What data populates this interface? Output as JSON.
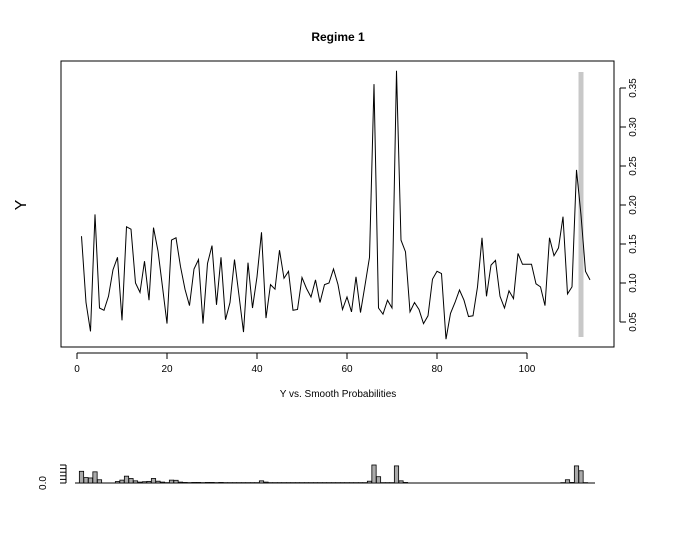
{
  "chart_data": [
    {
      "type": "line",
      "title": "Regime 1",
      "xlabel": "Y vs. Smooth Probabilities",
      "ylabel": "Y",
      "xlim": [
        0,
        115
      ],
      "ylim": [
        0.02,
        0.38
      ],
      "x_ticks": [
        0,
        20,
        40,
        60,
        80,
        100
      ],
      "y_ticks": [
        0.05,
        0.1,
        0.15,
        0.2,
        0.25,
        0.3,
        0.35
      ],
      "y_axis_side": "right",
      "grid": false,
      "series": [
        {
          "color": "#000000",
          "x": [
            1,
            2,
            3,
            4,
            5,
            6,
            7,
            8,
            9,
            10,
            11,
            12,
            13,
            14,
            15,
            16,
            17,
            18,
            19,
            20,
            21,
            22,
            23,
            24,
            25,
            26,
            27,
            28,
            29,
            30,
            31,
            32,
            33,
            34,
            35,
            36,
            37,
            38,
            39,
            40,
            41,
            42,
            43,
            44,
            45,
            46,
            47,
            48,
            49,
            50,
            51,
            52,
            53,
            54,
            55,
            56,
            57,
            58,
            59,
            60,
            61,
            62,
            63,
            64,
            65,
            66,
            67,
            68,
            69,
            70,
            71,
            72,
            73,
            74,
            75,
            76,
            77,
            78,
            79,
            80,
            81,
            82,
            83,
            84,
            85,
            86,
            87,
            88,
            89,
            90,
            91,
            92,
            93,
            94,
            95,
            96,
            97,
            98,
            99,
            100,
            101,
            102,
            103,
            104,
            105,
            106,
            107,
            108,
            109,
            110,
            111,
            112,
            113,
            114
          ],
          "y": [
            0.16,
            0.075,
            0.038,
            0.188,
            0.068,
            0.065,
            0.083,
            0.117,
            0.133,
            0.052,
            0.172,
            0.169,
            0.1,
            0.088,
            0.128,
            0.078,
            0.171,
            0.141,
            0.095,
            0.048,
            0.155,
            0.158,
            0.121,
            0.092,
            0.071,
            0.118,
            0.13,
            0.048,
            0.125,
            0.148,
            0.072,
            0.133,
            0.053,
            0.075,
            0.13,
            0.084,
            0.037,
            0.126,
            0.068,
            0.108,
            0.165,
            0.055,
            0.098,
            0.092,
            0.142,
            0.106,
            0.115,
            0.065,
            0.066,
            0.107,
            0.093,
            0.082,
            0.104,
            0.075,
            0.098,
            0.1,
            0.118,
            0.098,
            0.066,
            0.082,
            0.063,
            0.108,
            0.062,
            0.097,
            0.133,
            0.355,
            0.068,
            0.06,
            0.078,
            0.068,
            0.372,
            0.155,
            0.14,
            0.063,
            0.075,
            0.066,
            0.048,
            0.058,
            0.105,
            0.115,
            0.112,
            0.028,
            0.061,
            0.075,
            0.091,
            0.078,
            0.057,
            0.058,
            0.095,
            0.158,
            0.083,
            0.123,
            0.129,
            0.083,
            0.068,
            0.09,
            0.08,
            0.138,
            0.124,
            0.124,
            0.124,
            0.099,
            0.095,
            0.071,
            0.158,
            0.135,
            0.145,
            0.185,
            0.086,
            0.095,
            0.245,
            0.187,
            0.115,
            0.104
          ]
        }
      ],
      "highlight_band": {
        "x": 112,
        "color": "#c8c8c8"
      }
    },
    {
      "type": "bar",
      "ylabel_tick": "0.0",
      "xlim": [
        0,
        115
      ],
      "bar_color": "#aaaaaa",
      "series": [
        {
          "x": [
            1,
            2,
            3,
            4,
            5,
            9,
            10,
            11,
            12,
            13,
            14,
            15,
            16,
            17,
            18,
            19,
            20,
            21,
            22,
            23,
            24,
            25,
            26,
            27,
            28,
            29,
            30,
            31,
            32,
            33,
            34,
            35,
            36,
            37,
            38,
            39,
            40,
            41,
            42,
            43,
            44,
            45,
            46,
            47,
            48,
            49,
            50,
            51,
            52,
            53,
            54,
            55,
            56,
            57,
            58,
            59,
            60,
            61,
            62,
            63,
            64,
            65,
            66,
            67,
            68,
            69,
            70,
            71,
            72,
            73,
            108,
            109,
            110,
            111,
            112,
            113
          ],
          "values": [
            0.65,
            0.3,
            0.28,
            0.62,
            0.18,
            0.08,
            0.16,
            0.38,
            0.25,
            0.12,
            0.05,
            0.07,
            0.09,
            0.25,
            0.1,
            0.05,
            0.02,
            0.16,
            0.15,
            0.05,
            0.03,
            0.02,
            0.03,
            0.03,
            0.02,
            0.03,
            0.03,
            0.02,
            0.03,
            0.02,
            0.02,
            0.02,
            0.02,
            0.02,
            0.02,
            0.02,
            0.02,
            0.12,
            0.05,
            0.02,
            0.02,
            0.02,
            0.02,
            0.02,
            0.02,
            0.02,
            0.02,
            0.02,
            0.02,
            0.02,
            0.02,
            0.02,
            0.02,
            0.02,
            0.02,
            0.02,
            0.02,
            0.02,
            0.02,
            0.02,
            0.02,
            0.1,
            1.0,
            0.35,
            0.02,
            0.02,
            0.02,
            0.95,
            0.12,
            0.03,
            0.02,
            0.18,
            0.03,
            0.95,
            0.68,
            0.02
          ]
        }
      ]
    }
  ]
}
